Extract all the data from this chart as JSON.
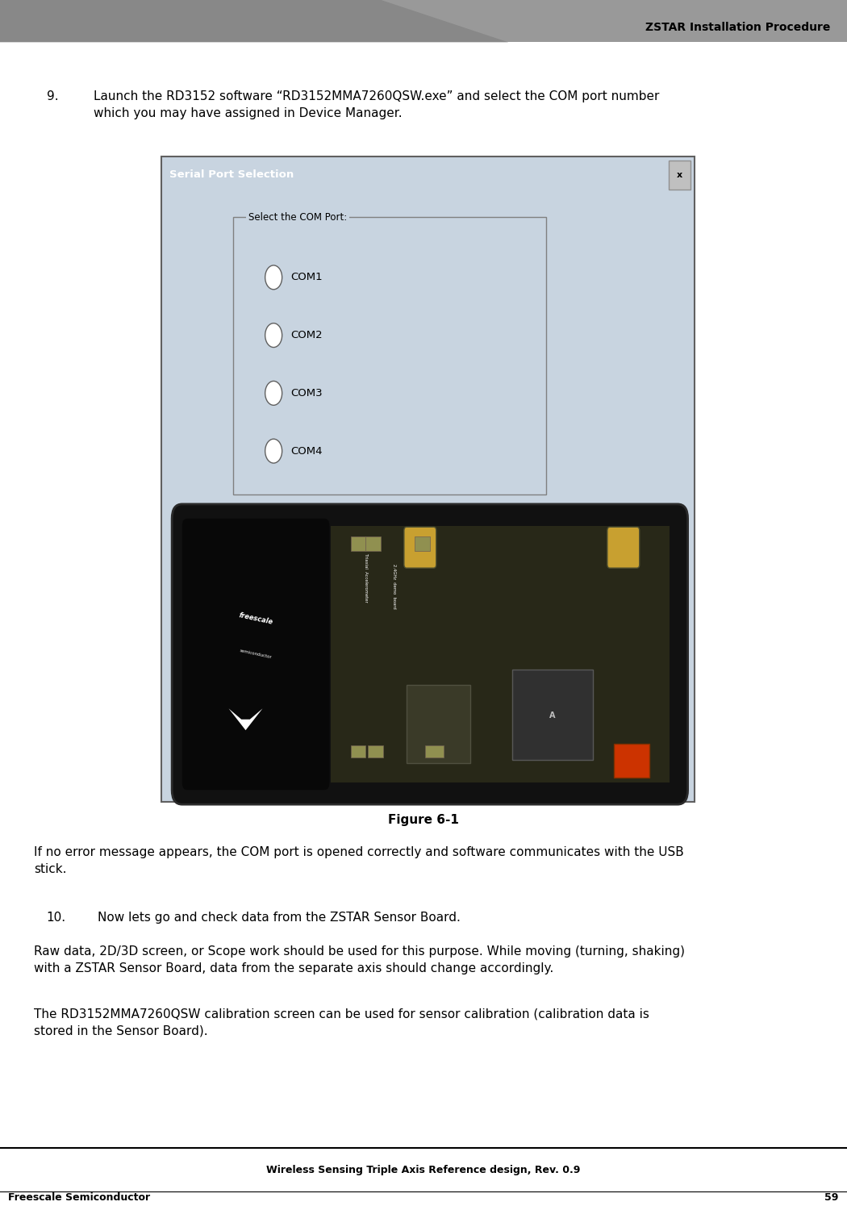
{
  "page_width": 10.5,
  "page_height": 14.95,
  "bg_color": "#ffffff",
  "header_title": "ZSTAR Installation Procedure",
  "header_title_fontsize": 10,
  "footer_center_text": "Wireless Sensing Triple Axis Reference design, Rev. 0.9",
  "footer_left_text": "Freescale Semiconductor",
  "footer_right_text": "59",
  "footer_fontsize": 9,
  "step9_number": "9.",
  "step9_text": "Launch the RD3152 software “RD3152MMA7260QSW.exe” and select the COM port number\nwhich you may have assigned in Device Manager.",
  "step9_fontsize": 11,
  "figure_caption": "Figure 6-1",
  "figure_caption_fontsize": 11,
  "para1_text": "If no error message appears, the COM port is opened correctly and software communicates with the USB\nstick.",
  "para1_fontsize": 11,
  "step10_number": "10.",
  "step10_text": "Now lets go and check data from the ZSTAR Sensor Board.",
  "step10_fontsize": 11,
  "para2_text": "Raw data, 2D/3D screen, or Scope work should be used for this purpose. While moving (turning, shaking)\nwith a ZSTAR Sensor Board, data from the separate axis should change accordingly.",
  "para2_fontsize": 11,
  "para3_text": "The RD3152MMA7260QSW calibration screen can be used for sensor calibration (calibration data is\nstored in the Sensor Board).",
  "para3_fontsize": 11,
  "dialog_title": "Serial Port Selection",
  "dialog_bg": "#c8d4e0",
  "com_ports": [
    "COM1",
    "COM2",
    "COM3",
    "COM4"
  ],
  "com_group_label": "Select the COM Port:"
}
